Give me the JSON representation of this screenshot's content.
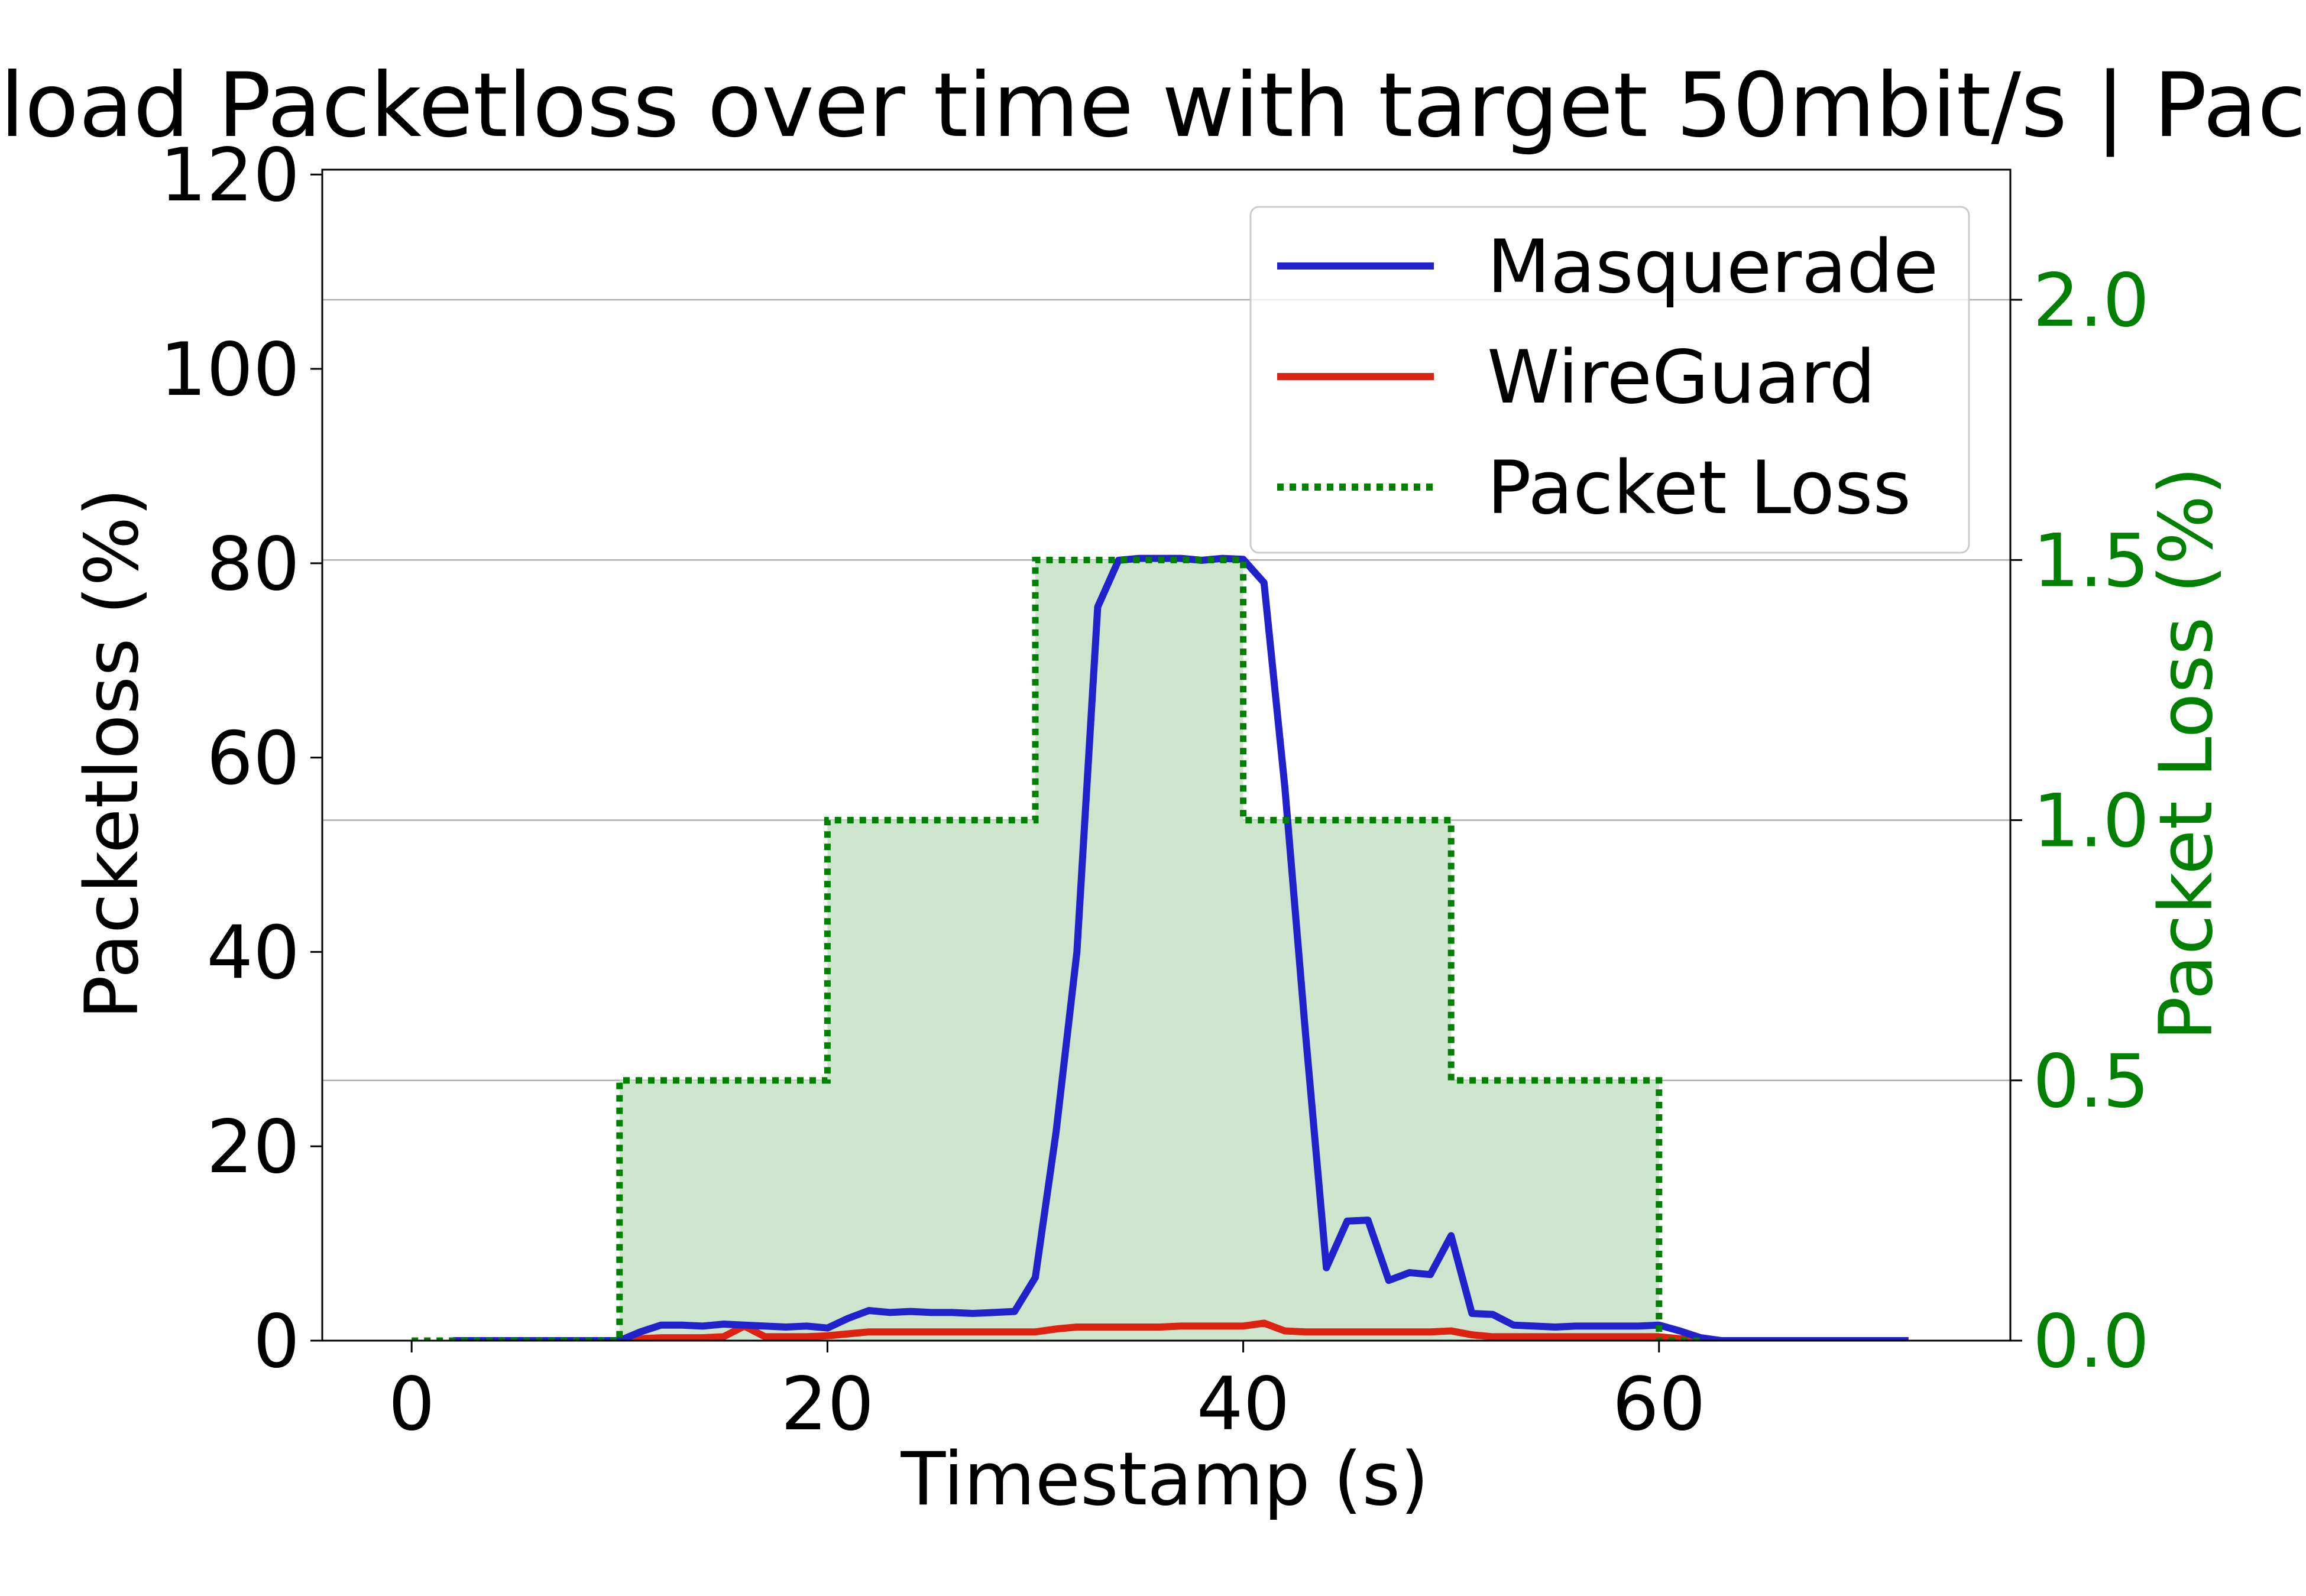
{
  "chart_data": {
    "type": "line",
    "title": "load Packetloss over time with target 50mbit/s | Pac",
    "xlabel": "Timestamp (s)",
    "ylabel": "Packetloss (%)",
    "y2label": "Packet Loss (%)",
    "xlim": [
      -4.3,
      76.9
    ],
    "ylim": [
      0,
      120.5
    ],
    "y2lim": [
      0,
      2.25
    ],
    "x_ticks": [
      0,
      20,
      40,
      60
    ],
    "y_ticks": [
      0,
      20,
      40,
      60,
      80,
      100,
      120
    ],
    "y2_ticks": [
      0.0,
      0.5,
      1.0,
      1.5,
      2.0
    ],
    "grid": "horizontal, right axis",
    "legend_position": "top-right",
    "colors": {
      "masquerade": "#2222cc",
      "wireguard": "#dd2211",
      "packet_loss_line": "#008000",
      "packet_loss_fill": "#cde5cd",
      "right_axis": "#008000"
    },
    "series": [
      {
        "name": "Masquerade",
        "axis": "left",
        "x": [
          2,
          3,
          4,
          5,
          6,
          7,
          8,
          9,
          10,
          11,
          12,
          13,
          14,
          15,
          16,
          17,
          18,
          19,
          20,
          21,
          22,
          23,
          24,
          25,
          26,
          27,
          28,
          29,
          30,
          31,
          32,
          33,
          34,
          35,
          36,
          37,
          38,
          39,
          40,
          41,
          42,
          43,
          44,
          45,
          46,
          47,
          48,
          49,
          50,
          51,
          52,
          53,
          54,
          55,
          56,
          57,
          58,
          59,
          60,
          61,
          62,
          63,
          64,
          65,
          66,
          67,
          68,
          69,
          70,
          71,
          72
        ],
        "values": [
          0,
          0,
          0,
          0,
          0,
          0,
          0,
          0,
          0,
          0.9,
          1.6,
          1.6,
          1.5,
          1.7,
          1.6,
          1.5,
          1.4,
          1.5,
          1.3,
          2.3,
          3.1,
          2.9,
          3.0,
          2.9,
          2.9,
          2.8,
          2.9,
          3.0,
          6.5,
          21.5,
          40.0,
          75.5,
          80.3,
          80.5,
          80.5,
          80.5,
          80.3,
          80.5,
          80.4,
          78.0,
          57.0,
          31.5,
          7.5,
          12.3,
          12.4,
          6.2,
          7.0,
          6.8,
          10.8,
          2.8,
          2.7,
          1.6,
          1.5,
          1.4,
          1.5,
          1.5,
          1.5,
          1.5,
          1.6,
          1.0,
          0.3,
          0,
          0,
          0,
          0,
          0,
          0,
          0,
          0,
          0,
          0
        ]
      },
      {
        "name": "WireGuard",
        "axis": "left",
        "x": [
          2,
          3,
          4,
          5,
          6,
          7,
          8,
          9,
          10,
          11,
          12,
          13,
          14,
          15,
          16,
          17,
          18,
          19,
          20,
          21,
          22,
          23,
          24,
          25,
          26,
          27,
          28,
          29,
          30,
          31,
          32,
          33,
          34,
          35,
          36,
          37,
          38,
          39,
          40,
          41,
          42,
          43,
          44,
          45,
          46,
          47,
          48,
          49,
          50,
          51,
          52,
          53,
          54,
          55,
          56,
          57,
          58,
          59,
          60,
          61,
          62,
          63,
          64,
          65,
          66,
          67,
          68,
          69,
          70,
          71,
          72
        ],
        "values": [
          0,
          0,
          0,
          0,
          0,
          0,
          0,
          0,
          0,
          0.2,
          0.3,
          0.3,
          0.3,
          0.4,
          1.5,
          0.4,
          0.4,
          0.4,
          0.5,
          0.7,
          0.9,
          0.9,
          0.9,
          0.9,
          0.9,
          0.9,
          0.9,
          0.9,
          0.9,
          1.2,
          1.4,
          1.4,
          1.4,
          1.4,
          1.4,
          1.5,
          1.5,
          1.5,
          1.5,
          1.8,
          1.0,
          0.9,
          0.9,
          0.9,
          0.9,
          0.9,
          0.9,
          0.9,
          1.0,
          0.6,
          0.4,
          0.4,
          0.4,
          0.4,
          0.4,
          0.4,
          0.4,
          0.4,
          0.4,
          0.2,
          0.1,
          0,
          0,
          0,
          0,
          0,
          0,
          0,
          0,
          0,
          0
        ]
      },
      {
        "name": "Packet Loss",
        "axis": "right",
        "style": "dotted-step-filled",
        "x": [
          0,
          10,
          10,
          20,
          20,
          30,
          30,
          40,
          40,
          50,
          50,
          60,
          60,
          62
        ],
        "values": [
          0,
          0,
          0.5,
          0.5,
          1.0,
          1.0,
          1.5,
          1.5,
          1.0,
          1.0,
          0.5,
          0.5,
          0,
          0
        ]
      }
    ]
  }
}
